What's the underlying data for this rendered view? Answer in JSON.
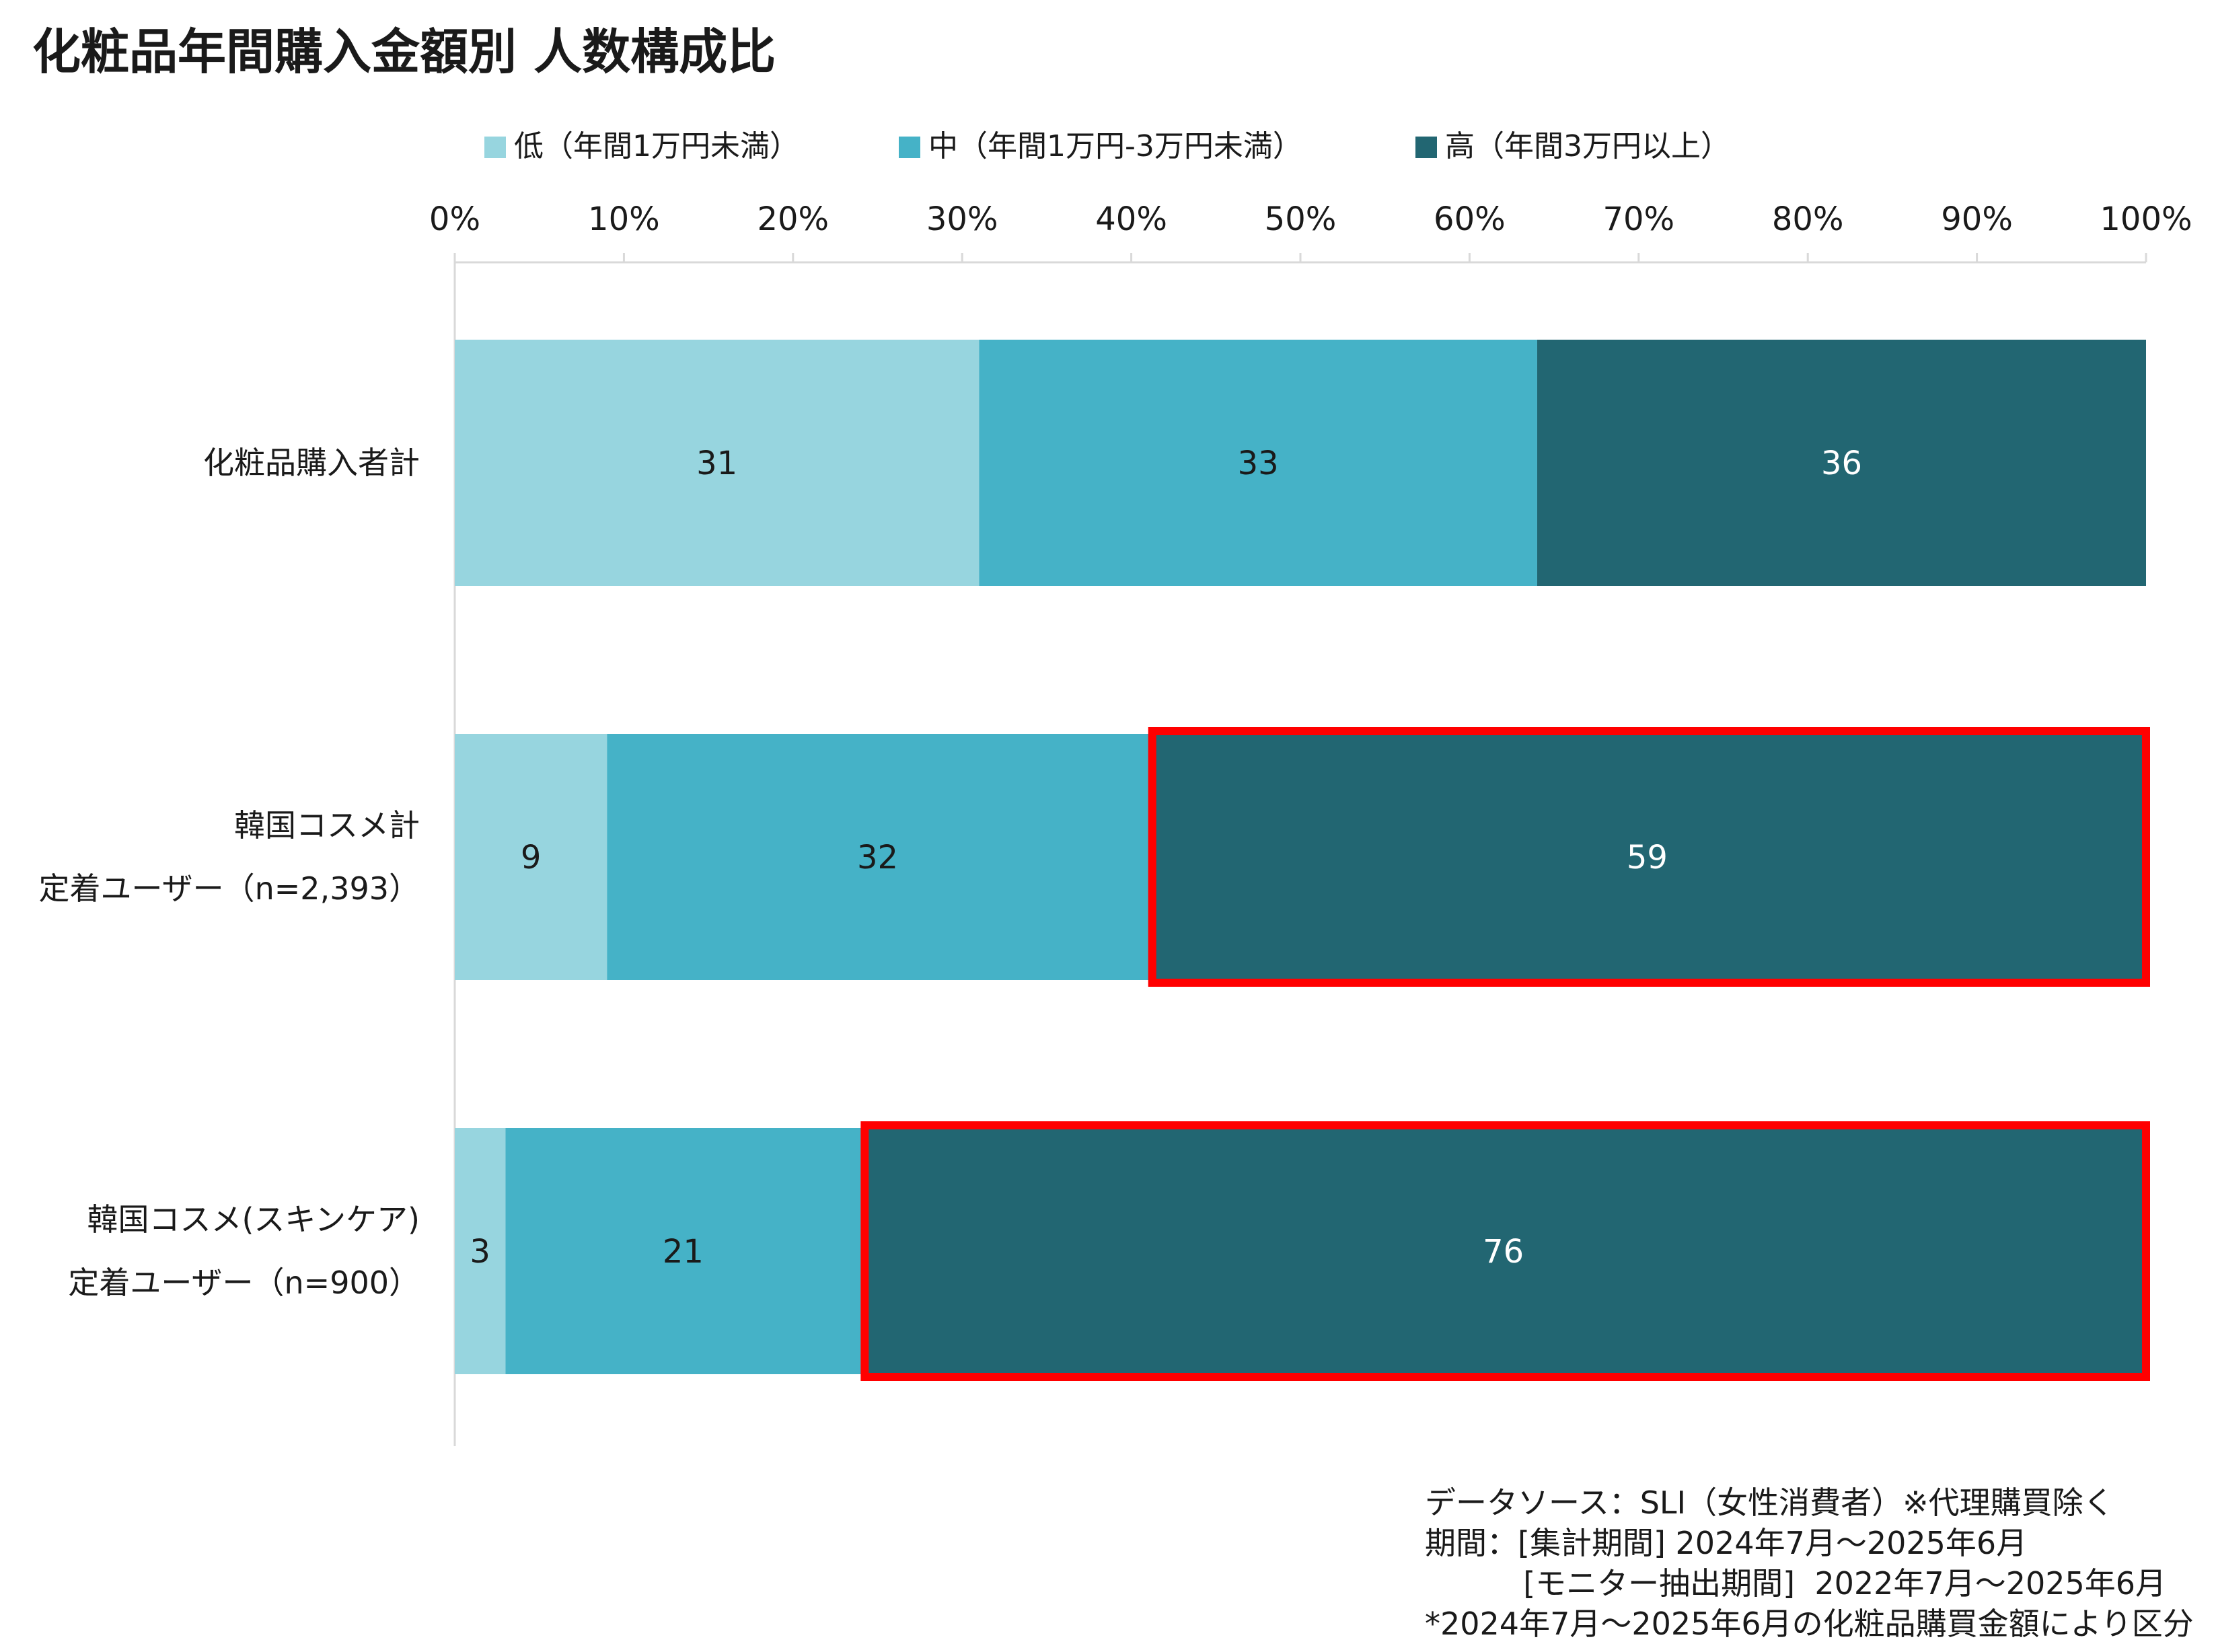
{
  "title": "化粧品年間購入金額別 人数構成比",
  "chart_data": {
    "type": "bar",
    "orientation": "horizontal",
    "stacked": true,
    "categories": [
      [
        "化粧品購入者計"
      ],
      [
        "韓国コスメ計",
        "定着ユーザー（n=2,393）"
      ],
      [
        "韓国コスメ(スキンケア)",
        "定着ユーザー（n=900）"
      ]
    ],
    "series": [
      {
        "name": "低（年間1万円未満）",
        "color": "#97d5df",
        "label_color": "#1a1a1a",
        "values": [
          31,
          9,
          3
        ]
      },
      {
        "name": "中（年間1万円-3万円未満）",
        "color": "#45b2c7",
        "label_color": "#1a1a1a",
        "values": [
          33,
          32,
          21
        ]
      },
      {
        "name": "高（年間3万円以上）",
        "color": "#226672",
        "label_color": "#ffffff",
        "values": [
          36,
          59,
          76
        ]
      }
    ],
    "xlim": [
      0,
      100
    ],
    "x_ticks": [
      "0%",
      "10%",
      "20%",
      "30%",
      "40%",
      "50%",
      "60%",
      "70%",
      "80%",
      "90%",
      "100%"
    ],
    "legend_position": "top",
    "highlights": [
      {
        "category_index": 1,
        "series_index": 2,
        "color": "#ff0000"
      },
      {
        "category_index": 2,
        "series_index": 2,
        "color": "#ff0000"
      }
    ]
  },
  "source_note": [
    "データソース：SLI（女性消費者）※代理購買除く",
    "期間：[集計期間] 2024年7月～2025年6月",
    "          [モニター抽出期間]  2022年7月～2025年6月",
    "*2024年7月～2025年6月の化粧品購買金額により区分"
  ]
}
